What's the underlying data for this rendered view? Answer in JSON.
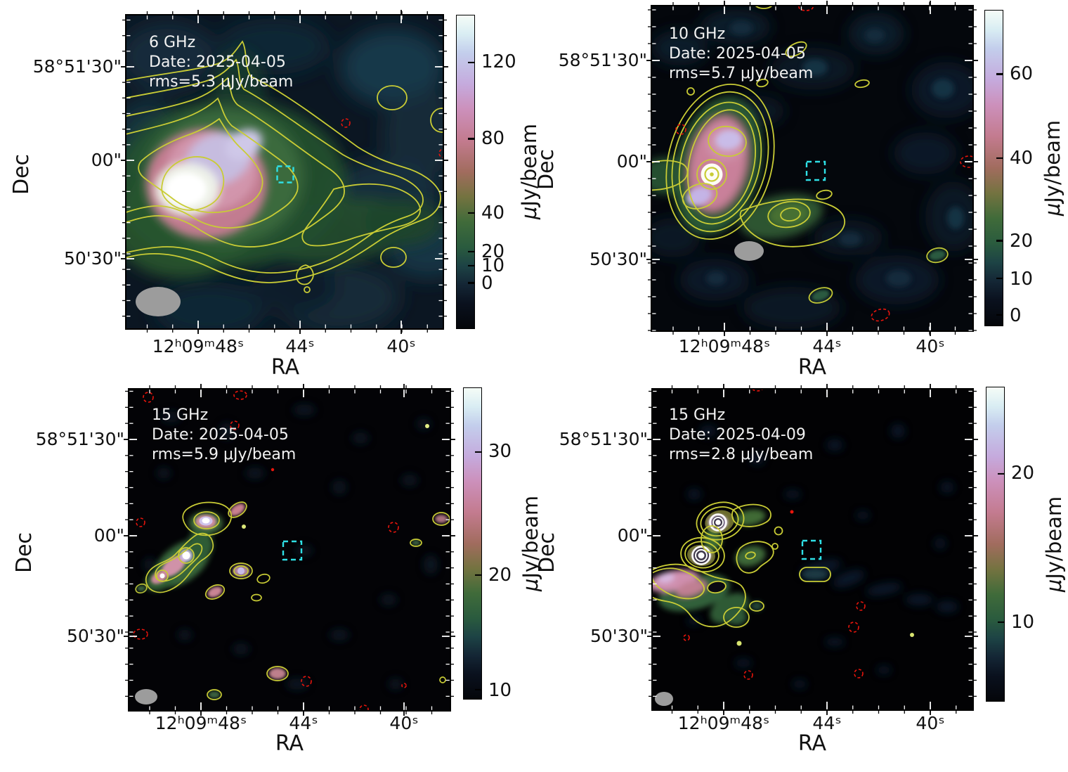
{
  "figure": {
    "xlabel": "RA",
    "ylabel": "Dec",
    "x_ticks": [
      "12ʰ09ᵐ48ˢ",
      "44ˢ",
      "40ˢ"
    ],
    "y_ticks": [
      "58°51'30\"",
      "00\"",
      "50'30\""
    ],
    "colorbar_label_mu": "μ",
    "colorbar_label_rest": "Jy/beam",
    "colors": {
      "contour_positive": "#c9cc35",
      "contour_negative": "#e8150c",
      "target_box": "#2fe0e6",
      "beam": "#9c9c9c",
      "colormap": "cubehelix"
    }
  },
  "panels": [
    {
      "freq": "6 GHz",
      "date": "Date: 2025-04-05",
      "rms": "rms=5.3 μJy/beam",
      "colorbar": {
        "ticks": [
          {
            "label": "120",
            "pos": 15.0
          },
          {
            "label": "80",
            "pos": 39.4
          },
          {
            "label": "40",
            "pos": 63.1
          },
          {
            "label": "20",
            "pos": 75.4
          },
          {
            "label": "10",
            "pos": 79.9
          },
          {
            "label": "0",
            "pos": 85.5
          }
        ]
      }
    },
    {
      "freq": "10 GHz",
      "date": "Date: 2025-04-05",
      "rms": "rms=5.7 μJy/beam",
      "colorbar": {
        "ticks": [
          {
            "label": "60",
            "pos": 20.2
          },
          {
            "label": "40",
            "pos": 46.9
          },
          {
            "label": "20",
            "pos": 73.1
          },
          {
            "label": "10",
            "pos": 85.1
          },
          {
            "label": "0",
            "pos": 96.7
          }
        ]
      }
    },
    {
      "freq": "15 GHz",
      "date": "Date: 2025-04-05",
      "rms": "rms=5.9 μJy/beam",
      "colorbar": {
        "ticks": [
          {
            "label": "30",
            "pos": 20.5
          },
          {
            "label": "20",
            "pos": 60.1
          },
          {
            "label": "10",
            "pos": 97.1
          }
        ]
      }
    },
    {
      "freq": "15 GHz",
      "date": "Date: 2025-04-09",
      "rms": "rms=2.8 μJy/beam",
      "colorbar": {
        "ticks": [
          {
            "label": "20",
            "pos": 27.5
          },
          {
            "label": "10",
            "pos": 74.8
          }
        ]
      }
    }
  ],
  "chart_data": [
    {
      "type": "heatmap",
      "title": "6 GHz",
      "annotations": [
        "Date: 2025-04-05",
        "rms=5.3 μJy/beam"
      ],
      "xlabel": "RA",
      "ylabel": "Dec",
      "x_ticklabels": [
        "12h09m48s",
        "44s",
        "40s"
      ],
      "y_ticklabels": [
        "58°51'30\"",
        "00\"",
        "50'30\""
      ],
      "colorbar": {
        "label": "μJy/beam",
        "ticks": [
          120,
          80,
          40,
          20,
          10,
          0
        ],
        "colormap": "cubehelix"
      },
      "content": "bright extended radio source left of center with white core, pink/lavender inner halo, green envelope and tail extending to lower right; ~7 nested yellow positive contours; small yellow contour islands upper-right, right edge and lower-right; small red dashed negative contour; cyan dashed target square at center; grey filled beam ellipse lower-left"
    },
    {
      "type": "heatmap",
      "title": "10 GHz",
      "annotations": [
        "Date: 2025-04-05",
        "rms=5.7 μJy/beam"
      ],
      "xlabel": "RA",
      "ylabel": "Dec",
      "x_ticklabels": [
        "12h09m48s",
        "44s",
        "40s"
      ],
      "y_ticklabels": [
        "58°51'30\"",
        "00\"",
        "50'30\""
      ],
      "colorbar": {
        "label": "μJy/beam",
        "ticks": [
          60,
          40,
          20,
          10,
          0
        ],
        "colormap": "cubehelix"
      },
      "content": "compact source left of center: white core with yellow ring, pink body and two lavender knots inside nested yellow contours, green arm extending right; scattered small yellow contour islands and red dashed negative contours; cyan dashed target square at center; grey beam ellipse at lower left"
    },
    {
      "type": "heatmap",
      "title": "15 GHz",
      "annotations": [
        "Date: 2025-04-05",
        "rms=5.9 μJy/beam"
      ],
      "xlabel": "RA",
      "ylabel": "Dec",
      "x_ticklabels": [
        "12h09m48s",
        "44s",
        "40s"
      ],
      "y_ticklabels": [
        "58°51'30\"",
        "00\"",
        "50'30\""
      ],
      "colorbar": {
        "label": "μJy/beam",
        "ticks": [
          30,
          20,
          10
        ],
        "colormap": "cubehelix"
      },
      "content": "mostly empty dark field; chain of compact knots left of center (white cores, pink/lavender rims, yellow contours) forming an S-shaped cluster; many small yellow blobs and red dashed negative contours scattered; cyan dashed target square at center; small grey beam ellipse lower-left"
    },
    {
      "type": "heatmap",
      "title": "15 GHz",
      "annotations": [
        "Date: 2025-04-09",
        "rms=2.8 μJy/beam"
      ],
      "xlabel": "RA",
      "ylabel": "Dec",
      "x_ticklabels": [
        "12h09m48s",
        "44s",
        "40s"
      ],
      "y_ticklabels": [
        "58°51'30\"",
        "00\"",
        "50'30\""
      ],
      "colorbar": {
        "label": "μJy/beam",
        "ticks": [
          20,
          10
        ],
        "colormap": "cubehelix"
      },
      "content": "two bright compact sources with concentric white contour rings left of center, pink extended emission to lower left, green web with yellow contours; scattered small yellow islands and red dashed negative contours; cyan dashed target square at center; small grey beam ellipse lower-left"
    }
  ]
}
